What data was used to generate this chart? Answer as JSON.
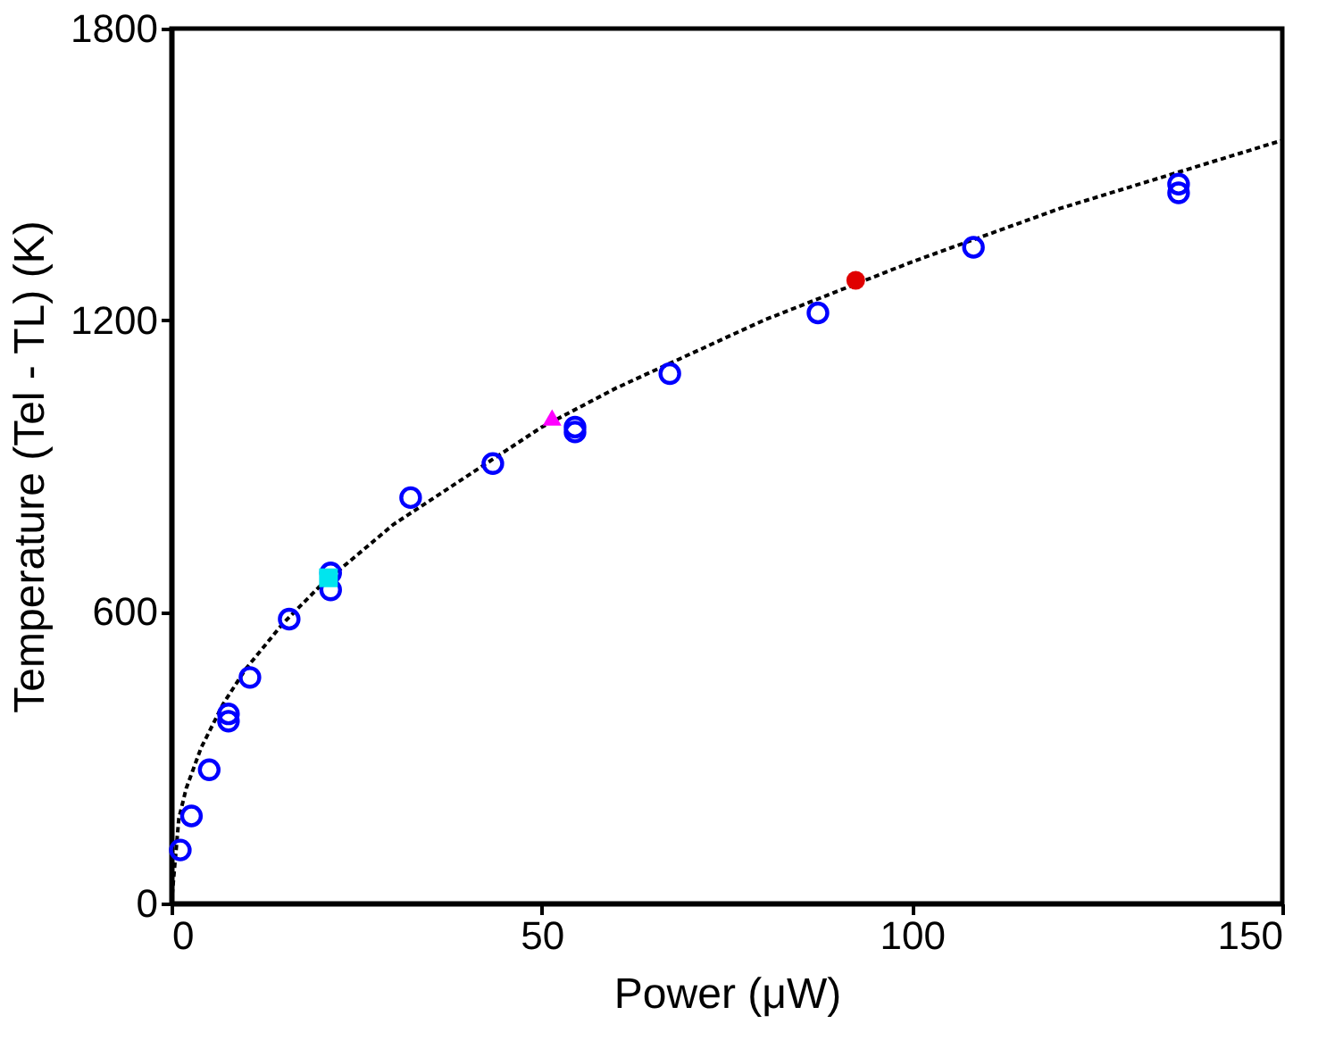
{
  "chart_data": {
    "type": "scatter",
    "xlabel": "Power (μW)",
    "ylabel": "Temperature (Tel - TL) (K)",
    "xlim": [
      0,
      150
    ],
    "ylim": [
      0,
      1800
    ],
    "xticks": [
      0,
      50,
      100,
      150
    ],
    "yticks": [
      0,
      600,
      1200,
      1800
    ],
    "grid": false,
    "series": [
      {
        "type": "line",
        "color": "#000000",
        "marker": "none",
        "line_style": "dotted",
        "x": [
          0,
          1,
          2,
          4,
          7,
          10,
          15,
          20,
          30,
          40,
          50,
          60,
          80,
          100,
          120,
          150
        ],
        "values": [
          0,
          175,
          237,
          320,
          411,
          482,
          575,
          652,
          780,
          880,
          980,
          1060,
          1200,
          1320,
          1430,
          1570
        ]
      },
      {
        "color": "#0000ff",
        "marker": "circle",
        "x": [
          1.2,
          2.7,
          5.1,
          7.7,
          7.7,
          10.6,
          15.9,
          21.5,
          21.5,
          32.3,
          43.4,
          54.5,
          54.5,
          67.3,
          87.3,
          108.3,
          136,
          136
        ],
        "values": [
          110,
          180,
          275,
          375,
          390,
          465,
          585,
          680,
          645,
          835,
          905,
          980,
          970,
          1090,
          1215,
          1350,
          1480,
          1462
        ]
      },
      {
        "color": "#00e5ee",
        "marker": "square",
        "x": [
          21.2
        ],
        "values": [
          670
        ]
      },
      {
        "color": "#ff00ff",
        "marker": "triangle",
        "x": [
          51.4
        ],
        "values": [
          1000
        ]
      },
      {
        "color": "#e00000",
        "marker": "circle",
        "x": [
          92.4
        ],
        "values": [
          1282
        ]
      }
    ]
  }
}
